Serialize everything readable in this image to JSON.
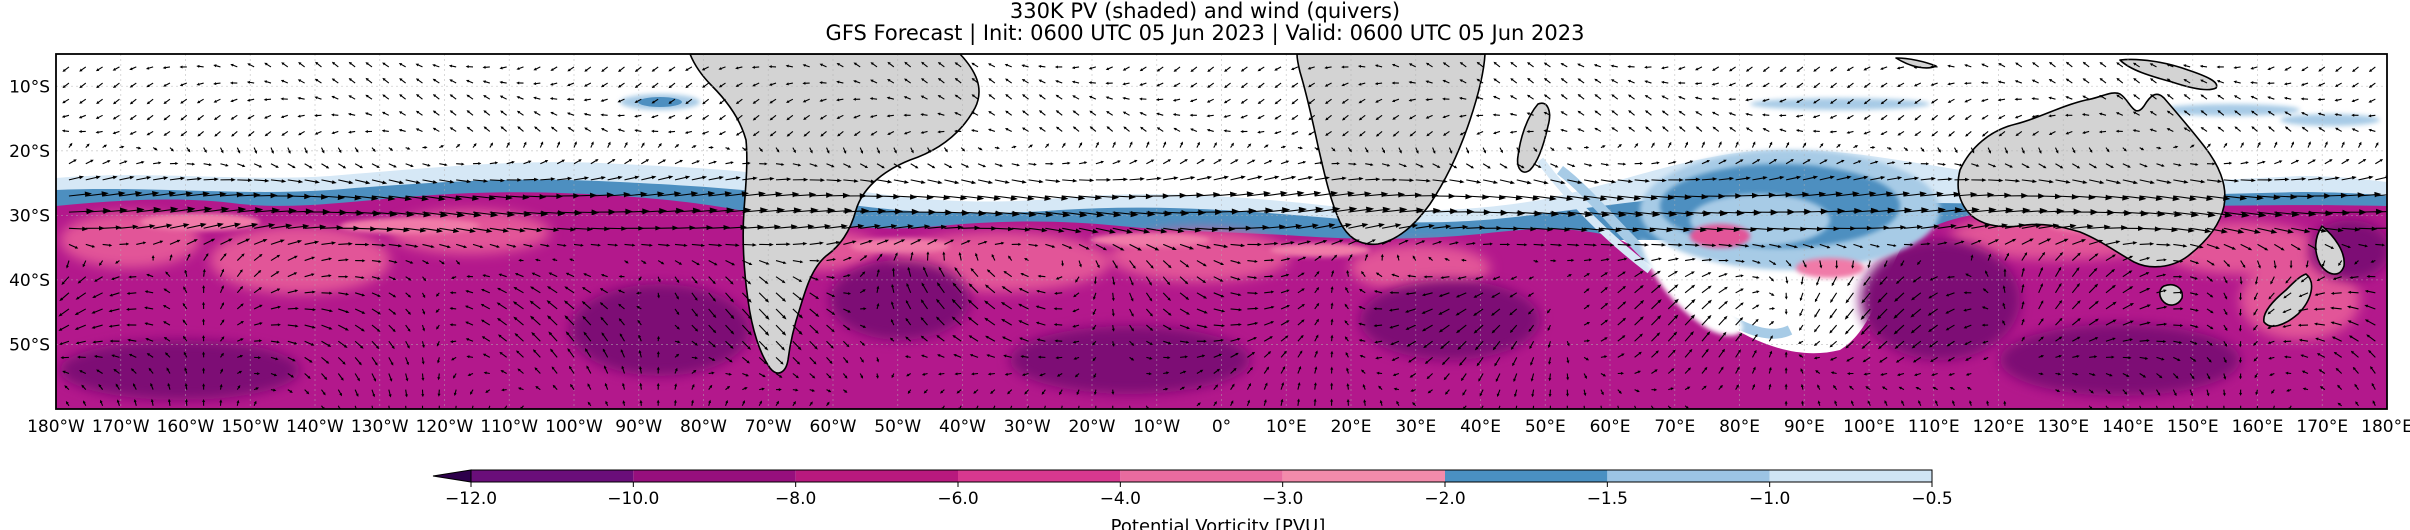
{
  "title": {
    "line1": "330K PV (shaded) and wind (quivers)",
    "line2": "GFS Forecast | Init: 0600 UTC 05 Jun 2023 | Valid: 0600 UTC 05 Jun 2023"
  },
  "map": {
    "projection": "PlateCarree",
    "lon_range": [
      -180,
      180
    ],
    "lat_range": [
      -60,
      -5
    ],
    "gridlines": true,
    "land_color": "#d3d3d3",
    "coastline_color": "#000000",
    "x_tick_labels": [
      "180°W",
      "170°W",
      "160°W",
      "150°W",
      "140°W",
      "130°W",
      "120°W",
      "110°W",
      "100°W",
      "90°W",
      "80°W",
      "70°W",
      "60°W",
      "50°W",
      "40°W",
      "30°W",
      "20°W",
      "10°W",
      "0°",
      "10°E",
      "20°E",
      "30°E",
      "40°E",
      "50°E",
      "60°E",
      "70°E",
      "80°E",
      "90°E",
      "100°E",
      "110°E",
      "120°E",
      "130°E",
      "140°E",
      "150°E",
      "160°E",
      "170°E",
      "180°E"
    ],
    "x_tick_values": [
      -180,
      -170,
      -160,
      -150,
      -140,
      -130,
      -120,
      -110,
      -100,
      -90,
      -80,
      -70,
      -60,
      -50,
      -40,
      -30,
      -20,
      -10,
      0,
      10,
      20,
      30,
      40,
      50,
      60,
      70,
      80,
      90,
      100,
      110,
      120,
      130,
      140,
      150,
      160,
      170,
      180
    ],
    "y_tick_labels": [
      "10°S",
      "20°S",
      "30°S",
      "40°S",
      "50°S"
    ],
    "y_tick_values": [
      -10,
      -20,
      -30,
      -40,
      -50
    ]
  },
  "colorbar": {
    "label": "Potential Vorticity [PVU]",
    "orientation": "horizontal",
    "extend": "min",
    "levels": [
      -12.0,
      -10.0,
      -8.0,
      -6.0,
      -4.0,
      -3.0,
      -2.0,
      -1.5,
      -1.0,
      -0.5
    ],
    "tick_labels": [
      "−12.0",
      "−10.0",
      "−8.0",
      "−6.0",
      "−4.0",
      "−3.0",
      "−2.0",
      "−1.5",
      "−1.0",
      "−0.5"
    ],
    "colors": [
      "#3b0f70",
      "#6a0e7a",
      "#960f7d",
      "#b8197e",
      "#d8388f",
      "#e96b9f",
      "#f38bab",
      "#4a90c2",
      "#9cc4e4",
      "#cfe4f4"
    ],
    "under_color": "#2d004b"
  },
  "colors": {
    "pv_dark": "#7d0a74",
    "pv_mid": "#b3188c",
    "pv_pink": "#e25598",
    "pv_light_pink": "#f07aa8",
    "pv_blue": "#4d8fc0",
    "pv_light_blue": "#a7cbe6",
    "pv_pale_blue": "#d6e8f6",
    "quiver": "#000000"
  }
}
